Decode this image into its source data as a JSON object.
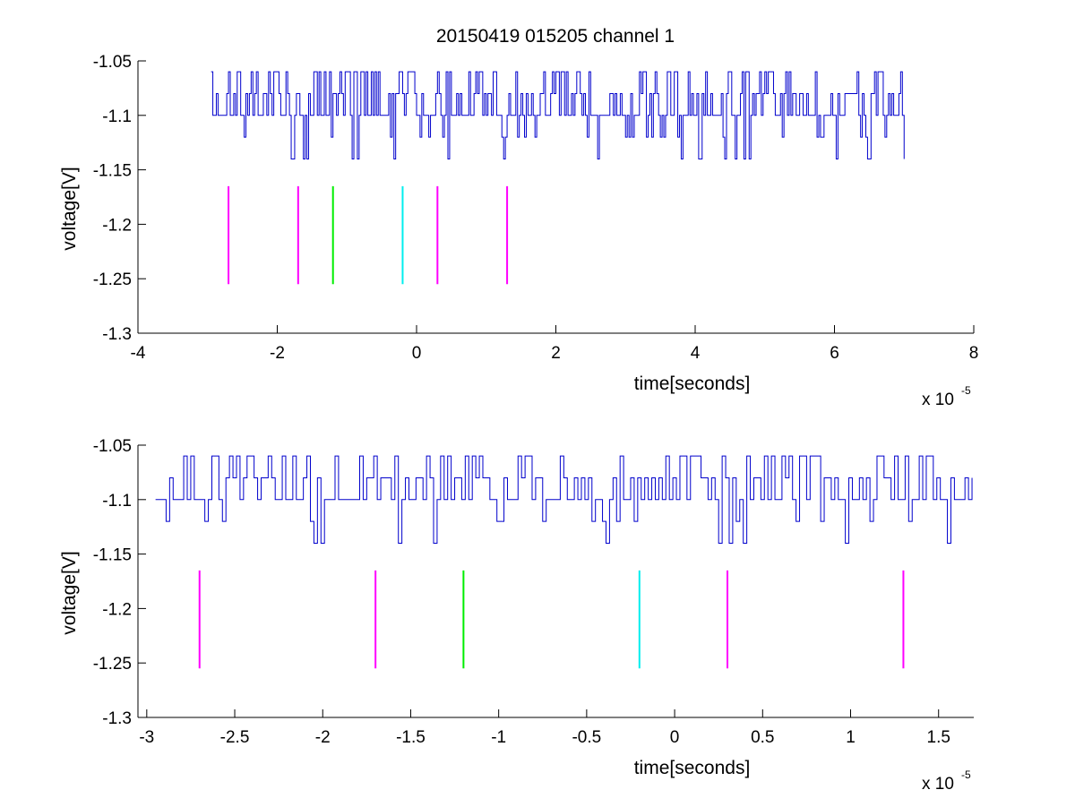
{
  "figure_title": "20150419 015205 channel 1",
  "colors": {
    "signal": "#0000cc",
    "magenta": "#ff00ff",
    "green": "#00ee00",
    "cyan": "#00eeee",
    "axis": "#000000",
    "background": "#ffffff"
  },
  "chart_data": [
    {
      "type": "line",
      "title": "20150419 015205 channel 1",
      "xlabel": "time[seconds]",
      "ylabel": "voltage[V]",
      "x_multiplier_label": {
        "base": "x 10",
        "exponent": "-5"
      },
      "xlim": [
        -4,
        8
      ],
      "ylim": [
        -1.3,
        -1.05
      ],
      "xticks": [
        -4,
        -2,
        0,
        2,
        4,
        6,
        8
      ],
      "xtick_labels": [
        "-4",
        "-2",
        "0",
        "2",
        "4",
        "6",
        "8"
      ],
      "yticks": [
        -1.3,
        -1.25,
        -1.2,
        -1.15,
        -1.1,
        -1.05
      ],
      "ytick_labels": [
        "-1.3",
        "-1.25",
        "-1.2",
        "-1.15",
        "-1.1",
        "-1.05"
      ],
      "grid": false,
      "series": [
        {
          "style": "noisy digitized trace, quantized levels",
          "color": "#0000cc",
          "x_range": [
            -2.95,
            7.0
          ],
          "levels": [
            -1.14,
            -1.12,
            -1.1,
            -1.08,
            -1.06
          ],
          "baseline": -1.1,
          "sample_step": 0.025
        }
      ],
      "markers": [
        {
          "x": -2.7,
          "color": "#ff00ff",
          "y_range": [
            -1.255,
            -1.165
          ]
        },
        {
          "x": -1.7,
          "color": "#ff00ff",
          "y_range": [
            -1.255,
            -1.165
          ]
        },
        {
          "x": -1.2,
          "color": "#00ee00",
          "y_range": [
            -1.255,
            -1.165
          ]
        },
        {
          "x": -0.2,
          "color": "#00eeee",
          "y_range": [
            -1.255,
            -1.165
          ]
        },
        {
          "x": 0.3,
          "color": "#ff00ff",
          "y_range": [
            -1.255,
            -1.165
          ]
        },
        {
          "x": 1.3,
          "color": "#ff00ff",
          "y_range": [
            -1.255,
            -1.165
          ]
        }
      ]
    },
    {
      "type": "line",
      "title": "",
      "xlabel": "time[seconds]",
      "ylabel": "voltage[V]",
      "x_multiplier_label": {
        "base": "x 10",
        "exponent": "-5"
      },
      "xlim": [
        -3.05,
        1.7
      ],
      "ylim": [
        -1.3,
        -1.05
      ],
      "xticks": [
        -3,
        -2.5,
        -2,
        -1.5,
        -1,
        -0.5,
        0,
        0.5,
        1,
        1.5
      ],
      "xtick_labels": [
        "-3",
        "-2.5",
        "-2",
        "-1.5",
        "-1",
        "-0.5",
        "0",
        "0.5",
        "1",
        "1.5"
      ],
      "yticks": [
        -1.3,
        -1.25,
        -1.2,
        -1.15,
        -1.1,
        -1.05
      ],
      "ytick_labels": [
        "-1.3",
        "-1.25",
        "-1.2",
        "-1.15",
        "-1.1",
        "-1.05"
      ],
      "grid": false,
      "series": [
        {
          "style": "noisy digitized trace, quantized levels",
          "color": "#0000cc",
          "x_range": [
            -2.95,
            1.7
          ],
          "levels": [
            -1.14,
            -1.12,
            -1.1,
            -1.08,
            -1.06
          ],
          "baseline": -1.1,
          "sample_step": 0.02
        }
      ],
      "markers": [
        {
          "x": -2.7,
          "color": "#ff00ff",
          "y_range": [
            -1.255,
            -1.165
          ]
        },
        {
          "x": -1.7,
          "color": "#ff00ff",
          "y_range": [
            -1.255,
            -1.165
          ]
        },
        {
          "x": -1.2,
          "color": "#00ee00",
          "y_range": [
            -1.255,
            -1.165
          ]
        },
        {
          "x": -0.2,
          "color": "#00eeee",
          "y_range": [
            -1.255,
            -1.165
          ]
        },
        {
          "x": 0.3,
          "color": "#ff00ff",
          "y_range": [
            -1.255,
            -1.165
          ]
        },
        {
          "x": 1.3,
          "color": "#ff00ff",
          "y_range": [
            -1.255,
            -1.165
          ]
        }
      ]
    }
  ]
}
